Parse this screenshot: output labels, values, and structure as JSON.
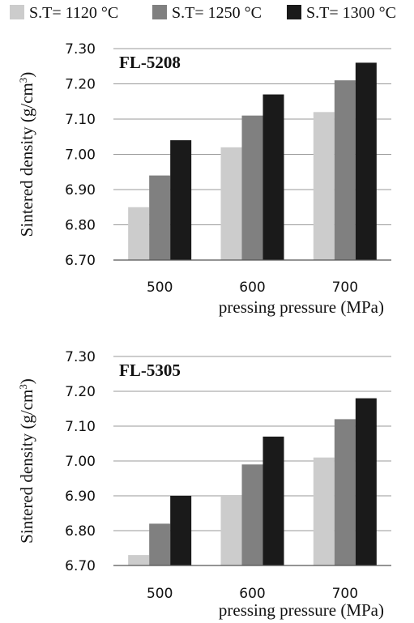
{
  "legend": [
    {
      "label": "S.T= 1120 °C",
      "color": "#cccccc"
    },
    {
      "label": "S.T= 1250 °C",
      "color": "#808080"
    },
    {
      "label": "S.T= 1300 °C",
      "color": "#1a1a1a"
    }
  ],
  "chart_data": [
    {
      "type": "bar",
      "title": "FL-5208",
      "xlabel": "pressing pressure (MPa)",
      "ylabel": "Sintered density (g/cm3)",
      "categories": [
        "500",
        "600",
        "700"
      ],
      "series": [
        {
          "name": "S.T= 1120 °C",
          "values": [
            6.85,
            7.02,
            7.12
          ]
        },
        {
          "name": "S.T= 1250 °C",
          "values": [
            6.94,
            7.11,
            7.21
          ]
        },
        {
          "name": "S.T= 1300 °C",
          "values": [
            7.04,
            7.17,
            7.26
          ]
        }
      ],
      "ylim": [
        6.7,
        7.3
      ],
      "yticks": [
        "6.70",
        "6.80",
        "6.90",
        "7.00",
        "7.10",
        "7.20",
        "7.30"
      ],
      "grid": true,
      "legend_position": "top"
    },
    {
      "type": "bar",
      "title": "FL-5305",
      "xlabel": "pressing pressure (MPa)",
      "ylabel": "Sintered density (g/cm3)",
      "categories": [
        "500",
        "600",
        "700"
      ],
      "series": [
        {
          "name": "S.T= 1120 °C",
          "values": [
            6.73,
            6.9,
            7.01
          ]
        },
        {
          "name": "S.T= 1250 °C",
          "values": [
            6.82,
            6.99,
            7.12
          ]
        },
        {
          "name": "S.T= 1300 °C",
          "values": [
            6.9,
            7.07,
            7.18
          ]
        }
      ],
      "ylim": [
        6.7,
        7.3
      ],
      "yticks": [
        "6.70",
        "6.80",
        "6.90",
        "7.00",
        "7.10",
        "7.20",
        "7.30"
      ],
      "grid": true,
      "legend_position": "top"
    }
  ]
}
